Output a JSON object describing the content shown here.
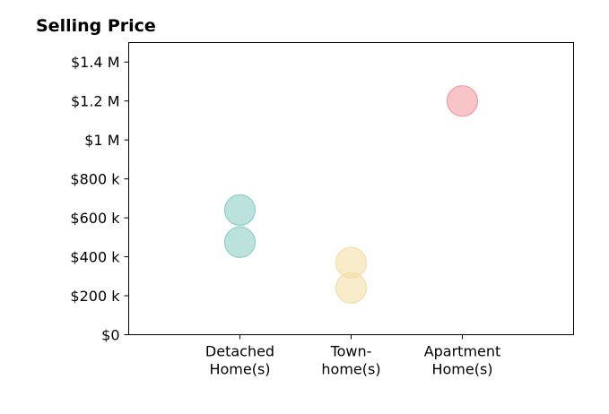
{
  "chart_data": {
    "type": "scatter",
    "title": "Selling Price",
    "xlabel": "",
    "ylabel": "",
    "categories": [
      [
        "Detached",
        "Home(s)"
      ],
      [
        "Town-",
        "home(s)"
      ],
      [
        "Apartment",
        "Home(s)"
      ]
    ],
    "xlim": [
      0,
      4
    ],
    "ylim": [
      0,
      1500000
    ],
    "yticks": [
      {
        "value": 0,
        "label": "$0"
      },
      {
        "value": 200000,
        "label": "$200 k"
      },
      {
        "value": 400000,
        "label": "$400 k"
      },
      {
        "value": 600000,
        "label": "$600 k"
      },
      {
        "value": 800000,
        "label": "$800 k"
      },
      {
        "value": 1000000,
        "label": "$1 M"
      },
      {
        "value": 1200000,
        "label": "$1.2 M"
      },
      {
        "value": 1400000,
        "label": "$1.4 M"
      }
    ],
    "grid": false,
    "points": [
      {
        "category": 0,
        "y": 475000,
        "color": "#8fcfc8"
      },
      {
        "category": 0,
        "y": 640000,
        "color": "#8fcfc8"
      },
      {
        "category": 1,
        "y": 240000,
        "color": "#f3dfa6"
      },
      {
        "category": 1,
        "y": 370000,
        "color": "#f3dfa6"
      },
      {
        "category": 2,
        "y": 1200000,
        "color": "#f19ca3"
      }
    ]
  }
}
